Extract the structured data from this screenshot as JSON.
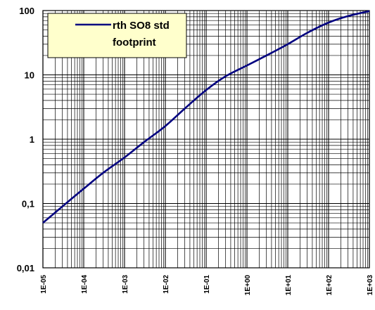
{
  "chart_data": {
    "type": "line",
    "x_scale": "log",
    "y_scale": "log",
    "xlim": [
      1e-05,
      1000
    ],
    "ylim": [
      0.01,
      100
    ],
    "grid": true,
    "legend_position": "top-left",
    "colors": {
      "line": "#000080",
      "grid": "#000000",
      "legend_bg": "#ffffcc",
      "background": "#ffffff"
    },
    "x_tick_labels": [
      "1E-05",
      "1E-04",
      "1E-03",
      "1E-02",
      "1E-01",
      "1E+00",
      "1E+01",
      "1E+02",
      "1E+03"
    ],
    "y_tick_labels": [
      "0,01",
      "0,1",
      "1",
      "10",
      "100"
    ],
    "series": [
      {
        "name_lines": [
          "rth SO8 std",
          "footprint"
        ],
        "x": [
          1e-05,
          3e-05,
          0.0001,
          0.0003,
          0.001,
          0.003,
          0.01,
          0.03,
          0.1,
          0.3,
          1,
          3,
          10,
          30,
          100,
          300,
          1000
        ],
        "y": [
          0.05,
          0.09,
          0.17,
          0.3,
          0.52,
          0.9,
          1.6,
          3.0,
          5.8,
          9.5,
          14,
          20,
          30,
          45,
          65,
          82,
          98
        ]
      }
    ]
  }
}
